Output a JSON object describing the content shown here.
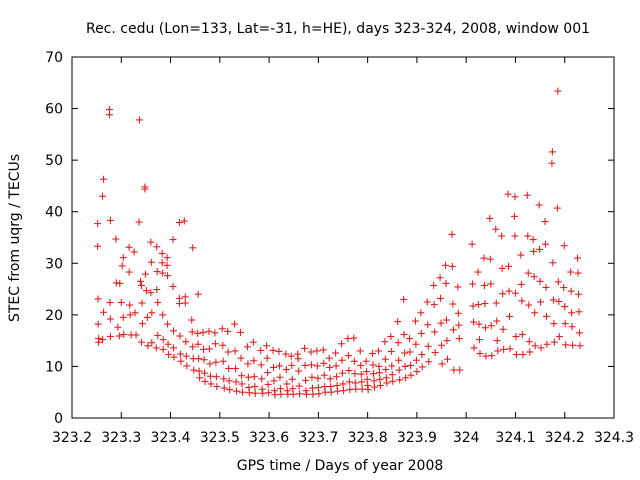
{
  "chart_data": {
    "type": "scatter",
    "title": "Rec. cedu (Lon=133, Lat=-31, h=HE), days 323-324, 2008, window 001",
    "xlabel": "GPS time / Days of year 2008",
    "ylabel": "STEC from uqrg / TECUs",
    "xlim": [
      323.2,
      324.3
    ],
    "ylim": [
      0,
      70
    ],
    "xticks": [
      323.2,
      323.3,
      323.4,
      323.5,
      323.6,
      323.7,
      323.8,
      323.9,
      324,
      324.1,
      324.2,
      324.3
    ],
    "xtick_labels": [
      "323.2",
      "323.3",
      "323.4",
      "323.5",
      "323.6",
      "323.7",
      "323.8",
      "323.9",
      "324",
      "324.1",
      "324.2",
      "324.3"
    ],
    "yticks": [
      0,
      10,
      20,
      30,
      40,
      50,
      60,
      70
    ],
    "ytick_labels": [
      "0",
      "10",
      "20",
      "30",
      "40",
      "50",
      "60",
      "70"
    ],
    "grid": false,
    "legend": "none",
    "marker": "plus",
    "color": "#e02020",
    "points": [
      [
        323.252,
        37.7
      ],
      [
        323.252,
        33.3
      ],
      [
        323.253,
        23.1
      ],
      [
        323.253,
        18.2
      ],
      [
        323.254,
        15.4
      ],
      [
        323.254,
        14.7
      ],
      [
        323.264,
        46.3
      ],
      [
        323.262,
        43.0
      ],
      [
        323.264,
        20.5
      ],
      [
        323.262,
        15.2
      ],
      [
        323.276,
        59.8
      ],
      [
        323.276,
        58.8
      ],
      [
        323.278,
        38.3
      ],
      [
        323.277,
        22.4
      ],
      [
        323.278,
        19.2
      ],
      [
        323.278,
        15.8
      ],
      [
        323.289,
        34.7
      ],
      [
        323.29,
        26.2
      ],
      [
        323.293,
        17.6
      ],
      [
        323.296,
        15.9
      ],
      [
        323.297,
        26.1
      ],
      [
        323.302,
        29.5
      ],
      [
        323.304,
        31.1
      ],
      [
        323.3,
        22.4
      ],
      [
        323.304,
        19.5
      ],
      [
        323.305,
        16.2
      ],
      [
        323.316,
        33.1
      ],
      [
        323.316,
        28.3
      ],
      [
        323.317,
        21.9
      ],
      [
        323.318,
        20.0
      ],
      [
        323.32,
        16.1
      ],
      [
        323.326,
        32.2
      ],
      [
        323.328,
        20.4
      ],
      [
        323.33,
        16.1
      ],
      [
        323.337,
        57.8
      ],
      [
        323.336,
        38.0
      ],
      [
        323.339,
        26.5
      ],
      [
        323.341,
        25.7
      ],
      [
        323.342,
        22.3
      ],
      [
        323.343,
        18.3
      ],
      [
        323.341,
        14.7
      ],
      [
        323.348,
        44.8
      ],
      [
        323.348,
        44.4
      ],
      [
        323.349,
        27.9
      ],
      [
        323.351,
        24.7
      ],
      [
        323.353,
        19.5
      ],
      [
        323.354,
        14.0
      ],
      [
        323.36,
        34.1
      ],
      [
        323.361,
        30.2
      ],
      [
        323.36,
        24.3
      ],
      [
        323.362,
        20.4
      ],
      [
        323.362,
        14.6
      ],
      [
        323.372,
        33.2
      ],
      [
        323.373,
        28.4
      ],
      [
        323.372,
        24.9
      ],
      [
        323.374,
        22.4
      ],
      [
        323.374,
        16.0
      ],
      [
        323.371,
        13.6
      ],
      [
        323.383,
        31.9
      ],
      [
        323.383,
        30.1
      ],
      [
        323.384,
        28.1
      ],
      [
        323.384,
        20.0
      ],
      [
        323.385,
        15.2
      ],
      [
        323.385,
        13.3
      ],
      [
        323.393,
        31.1
      ],
      [
        323.393,
        29.6
      ],
      [
        323.394,
        27.6
      ],
      [
        323.394,
        18.2
      ],
      [
        323.395,
        14.3
      ],
      [
        323.396,
        12.3
      ],
      [
        323.405,
        34.6
      ],
      [
        323.405,
        25.5
      ],
      [
        323.406,
        16.9
      ],
      [
        323.406,
        13.6
      ],
      [
        323.407,
        11.8
      ],
      [
        323.418,
        37.9
      ],
      [
        323.418,
        23.2
      ],
      [
        323.418,
        22.2
      ],
      [
        323.419,
        15.9
      ],
      [
        323.42,
        12.4
      ],
      [
        323.421,
        11.0
      ],
      [
        323.428,
        38.2
      ],
      [
        323.43,
        22.3
      ],
      [
        323.43,
        23.5
      ],
      [
        323.431,
        14.8
      ],
      [
        323.432,
        12.0
      ],
      [
        323.433,
        10.1
      ],
      [
        323.445,
        33.0
      ],
      [
        323.443,
        19.0
      ],
      [
        323.444,
        16.7
      ],
      [
        323.445,
        13.8
      ],
      [
        323.446,
        11.5
      ],
      [
        323.447,
        9.3
      ],
      [
        323.456,
        24.0
      ],
      [
        323.455,
        16.4
      ],
      [
        323.456,
        14.3
      ],
      [
        323.457,
        11.5
      ],
      [
        323.458,
        9.1
      ],
      [
        323.459,
        7.8
      ],
      [
        323.466,
        16.6
      ],
      [
        323.467,
        13.3
      ],
      [
        323.468,
        11.3
      ],
      [
        323.469,
        8.7
      ],
      [
        323.47,
        7.1
      ],
      [
        323.478,
        16.8
      ],
      [
        323.479,
        13.4
      ],
      [
        323.48,
        10.5
      ],
      [
        323.481,
        8.1
      ],
      [
        323.482,
        6.6
      ],
      [
        323.49,
        16.5
      ],
      [
        323.491,
        14.4
      ],
      [
        323.492,
        10.8
      ],
      [
        323.493,
        8.0
      ],
      [
        323.494,
        6.1
      ],
      [
        323.505,
        17.3
      ],
      [
        323.506,
        14.1
      ],
      [
        323.507,
        11.0
      ],
      [
        323.508,
        7.6
      ],
      [
        323.509,
        5.8
      ],
      [
        323.516,
        16.8
      ],
      [
        323.517,
        12.8
      ],
      [
        323.518,
        9.6
      ],
      [
        323.519,
        7.2
      ],
      [
        323.52,
        5.5
      ],
      [
        323.53,
        18.2
      ],
      [
        323.531,
        13.0
      ],
      [
        323.532,
        9.6
      ],
      [
        323.533,
        7.0
      ],
      [
        323.534,
        5.2
      ],
      [
        323.542,
        16.6
      ],
      [
        323.543,
        11.6
      ],
      [
        323.544,
        8.2
      ],
      [
        323.545,
        6.6
      ],
      [
        323.546,
        5.0
      ],
      [
        323.556,
        13.8
      ],
      [
        323.557,
        10.5
      ],
      [
        323.558,
        7.9
      ],
      [
        323.559,
        5.9
      ],
      [
        323.56,
        4.9
      ],
      [
        323.568,
        14.7
      ],
      [
        323.569,
        11.1
      ],
      [
        323.57,
        8.0
      ],
      [
        323.571,
        6.1
      ],
      [
        323.572,
        4.8
      ],
      [
        323.583,
        13.1
      ],
      [
        323.584,
        10.3
      ],
      [
        323.585,
        7.6
      ],
      [
        323.586,
        5.6
      ],
      [
        323.587,
        4.8
      ],
      [
        323.595,
        14.0
      ],
      [
        323.596,
        11.6
      ],
      [
        323.597,
        8.8
      ],
      [
        323.598,
        6.5
      ],
      [
        323.599,
        4.9
      ],
      [
        323.608,
        13.1
      ],
      [
        323.609,
        9.8
      ],
      [
        323.61,
        7.2
      ],
      [
        323.611,
        5.3
      ],
      [
        323.612,
        4.5
      ],
      [
        323.62,
        12.9
      ],
      [
        323.621,
        10.1
      ],
      [
        323.622,
        7.9
      ],
      [
        323.623,
        5.7
      ],
      [
        323.624,
        4.6
      ],
      [
        323.634,
        12.4
      ],
      [
        323.635,
        9.4
      ],
      [
        323.636,
        6.6
      ],
      [
        323.637,
        5.3
      ],
      [
        323.638,
        4.6
      ],
      [
        323.645,
        12.0
      ],
      [
        323.646,
        10.2
      ],
      [
        323.647,
        7.5
      ],
      [
        323.648,
        5.7
      ],
      [
        323.649,
        4.6
      ],
      [
        323.658,
        12.4
      ],
      [
        323.659,
        11.5
      ],
      [
        323.66,
        9.1
      ],
      [
        323.661,
        6.2
      ],
      [
        323.662,
        4.7
      ],
      [
        323.672,
        13.5
      ],
      [
        323.673,
        10.2
      ],
      [
        323.674,
        7.3
      ],
      [
        323.675,
        5.3
      ],
      [
        323.676,
        4.6
      ],
      [
        323.685,
        12.8
      ],
      [
        323.686,
        10.3
      ],
      [
        323.687,
        7.9
      ],
      [
        323.688,
        5.8
      ],
      [
        323.689,
        4.6
      ],
      [
        323.697,
        13.0
      ],
      [
        323.698,
        10.1
      ],
      [
        323.699,
        7.7
      ],
      [
        323.7,
        5.9
      ],
      [
        323.701,
        4.7
      ],
      [
        323.71,
        13.2
      ],
      [
        323.711,
        10.6
      ],
      [
        323.712,
        8.3
      ],
      [
        323.713,
        6.1
      ],
      [
        323.714,
        5.0
      ],
      [
        323.722,
        11.6
      ],
      [
        323.723,
        9.8
      ],
      [
        323.724,
        7.6
      ],
      [
        323.725,
        6.1
      ],
      [
        323.726,
        5.0
      ],
      [
        323.735,
        12.6
      ],
      [
        323.736,
        10.1
      ],
      [
        323.737,
        8.0
      ],
      [
        323.738,
        6.3
      ],
      [
        323.739,
        5.2
      ],
      [
        323.747,
        14.4
      ],
      [
        323.748,
        11.2
      ],
      [
        323.749,
        8.7
      ],
      [
        323.75,
        6.6
      ],
      [
        323.751,
        5.3
      ],
      [
        323.76,
        15.4
      ],
      [
        323.761,
        12.1
      ],
      [
        323.762,
        9.2
      ],
      [
        323.763,
        7.0
      ],
      [
        323.764,
        5.5
      ],
      [
        323.772,
        15.5
      ],
      [
        323.773,
        11.0
      ],
      [
        323.774,
        8.6
      ],
      [
        323.775,
        6.8
      ],
      [
        323.776,
        5.6
      ],
      [
        323.785,
        13.0
      ],
      [
        323.786,
        10.2
      ],
      [
        323.787,
        8.5
      ],
      [
        323.788,
        7.0
      ],
      [
        323.789,
        5.6
      ],
      [
        323.797,
        11.0
      ],
      [
        323.798,
        9.0
      ],
      [
        323.799,
        7.5
      ],
      [
        323.8,
        6.3
      ],
      [
        323.801,
        5.5
      ],
      [
        323.81,
        12.5
      ],
      [
        323.811,
        10.3
      ],
      [
        323.812,
        8.6
      ],
      [
        323.813,
        7.2
      ],
      [
        323.814,
        6.0
      ],
      [
        323.822,
        13.0
      ],
      [
        323.823,
        10.0
      ],
      [
        323.824,
        8.8
      ],
      [
        323.825,
        7.5
      ],
      [
        323.826,
        6.3
      ],
      [
        323.835,
        14.8
      ],
      [
        323.836,
        11.4
      ],
      [
        323.837,
        9.4
      ],
      [
        323.838,
        7.8
      ],
      [
        323.839,
        6.8
      ],
      [
        323.847,
        15.8
      ],
      [
        323.848,
        12.9
      ],
      [
        323.849,
        10.1
      ],
      [
        323.85,
        8.4
      ],
      [
        323.851,
        7.1
      ],
      [
        323.861,
        18.7
      ],
      [
        323.862,
        14.6
      ],
      [
        323.863,
        11.2
      ],
      [
        323.864,
        9.3
      ],
      [
        323.865,
        7.4
      ],
      [
        323.873,
        23.0
      ],
      [
        323.874,
        16.2
      ],
      [
        323.875,
        12.6
      ],
      [
        323.876,
        10.0
      ],
      [
        323.877,
        7.8
      ],
      [
        323.885,
        15.4
      ],
      [
        323.886,
        12.8
      ],
      [
        323.887,
        10.2
      ],
      [
        323.888,
        8.3
      ],
      [
        323.897,
        18.8
      ],
      [
        323.898,
        14.3
      ],
      [
        323.899,
        11.2
      ],
      [
        323.9,
        9.0
      ],
      [
        323.908,
        20.4
      ],
      [
        323.909,
        16.4
      ],
      [
        323.91,
        12.3
      ],
      [
        323.911,
        9.9
      ],
      [
        323.921,
        22.5
      ],
      [
        323.922,
        18.1
      ],
      [
        323.923,
        13.9
      ],
      [
        323.924,
        10.9
      ],
      [
        323.934,
        25.7
      ],
      [
        323.935,
        22.0
      ],
      [
        323.936,
        16.7
      ],
      [
        323.937,
        12.7
      ],
      [
        323.947,
        27.2
      ],
      [
        323.948,
        23.2
      ],
      [
        323.949,
        18.4
      ],
      [
        323.95,
        14.1
      ],
      [
        323.951,
        10.5
      ],
      [
        323.958,
        29.6
      ],
      [
        323.959,
        26.1
      ],
      [
        323.96,
        19.0
      ],
      [
        323.961,
        15.0
      ],
      [
        323.962,
        11.4
      ],
      [
        323.971,
        35.6
      ],
      [
        323.972,
        29.4
      ],
      [
        323.973,
        22.1
      ],
      [
        323.974,
        17.1
      ],
      [
        323.975,
        9.3
      ],
      [
        323.983,
        25.4
      ],
      [
        323.984,
        20.3
      ],
      [
        323.985,
        18.0
      ],
      [
        323.986,
        15.4
      ],
      [
        323.987,
        9.3
      ],
      [
        324.012,
        33.7
      ],
      [
        324.013,
        26.0
      ],
      [
        324.014,
        21.7
      ],
      [
        324.015,
        18.6
      ],
      [
        324.016,
        13.6
      ],
      [
        324.024,
        28.3
      ],
      [
        324.025,
        22.0
      ],
      [
        324.026,
        18.2
      ],
      [
        324.027,
        15.2
      ],
      [
        324.028,
        12.5
      ],
      [
        324.036,
        31.0
      ],
      [
        324.037,
        25.7
      ],
      [
        324.038,
        22.2
      ],
      [
        324.039,
        17.5
      ],
      [
        324.04,
        12.0
      ],
      [
        324.048,
        38.7
      ],
      [
        324.049,
        30.8
      ],
      [
        324.05,
        26.0
      ],
      [
        324.051,
        17.9
      ],
      [
        324.052,
        12.1
      ],
      [
        324.06,
        36.6
      ],
      [
        324.061,
        22.3
      ],
      [
        324.062,
        18.8
      ],
      [
        324.063,
        15.0
      ],
      [
        324.064,
        13.0
      ],
      [
        324.072,
        35.3
      ],
      [
        324.073,
        29.0
      ],
      [
        324.074,
        24.1
      ],
      [
        324.075,
        17.2
      ],
      [
        324.076,
        13.3
      ],
      [
        324.085,
        43.4
      ],
      [
        324.086,
        29.4
      ],
      [
        324.087,
        24.6
      ],
      [
        324.088,
        19.7
      ],
      [
        324.089,
        13.4
      ],
      [
        324.099,
        42.9
      ],
      [
        324.098,
        39.1
      ],
      [
        324.099,
        35.3
      ],
      [
        324.1,
        24.2
      ],
      [
        324.101,
        15.8
      ],
      [
        324.102,
        12.3
      ],
      [
        324.111,
        31.6
      ],
      [
        324.112,
        25.9
      ],
      [
        324.113,
        22.7
      ],
      [
        324.114,
        16.2
      ],
      [
        324.115,
        12.3
      ],
      [
        324.124,
        43.2
      ],
      [
        324.125,
        35.3
      ],
      [
        324.126,
        28.1
      ],
      [
        324.127,
        21.9
      ],
      [
        324.128,
        14.8
      ],
      [
        324.129,
        12.8
      ],
      [
        324.136,
        34.6
      ],
      [
        324.137,
        32.3
      ],
      [
        324.138,
        27.4
      ],
      [
        324.139,
        20.4
      ],
      [
        324.14,
        14.0
      ],
      [
        324.148,
        41.3
      ],
      [
        324.149,
        32.7
      ],
      [
        324.15,
        26.5
      ],
      [
        324.151,
        22.5
      ],
      [
        324.152,
        13.6
      ],
      [
        324.16,
        38.1
      ],
      [
        324.161,
        33.7
      ],
      [
        324.162,
        25.3
      ],
      [
        324.163,
        19.7
      ],
      [
        324.164,
        14.3
      ],
      [
        324.175,
        51.6
      ],
      [
        324.174,
        49.4
      ],
      [
        324.176,
        30.1
      ],
      [
        324.177,
        22.9
      ],
      [
        324.178,
        18.3
      ],
      [
        324.179,
        14.7
      ],
      [
        324.186,
        63.4
      ],
      [
        324.185,
        40.7
      ],
      [
        324.187,
        26.4
      ],
      [
        324.188,
        22.6
      ],
      [
        324.189,
        15.8
      ],
      [
        324.199,
        33.4
      ],
      [
        324.198,
        25.3
      ],
      [
        324.2,
        21.6
      ],
      [
        324.201,
        18.3
      ],
      [
        324.202,
        14.2
      ],
      [
        324.212,
        28.3
      ],
      [
        324.213,
        24.6
      ],
      [
        324.214,
        20.4
      ],
      [
        324.215,
        17.7
      ],
      [
        324.216,
        14.1
      ],
      [
        324.226,
        31.0
      ],
      [
        324.227,
        28.1
      ],
      [
        324.228,
        24.0
      ],
      [
        324.229,
        20.6
      ],
      [
        324.23,
        16.5
      ],
      [
        324.231,
        14.0
      ]
    ]
  }
}
